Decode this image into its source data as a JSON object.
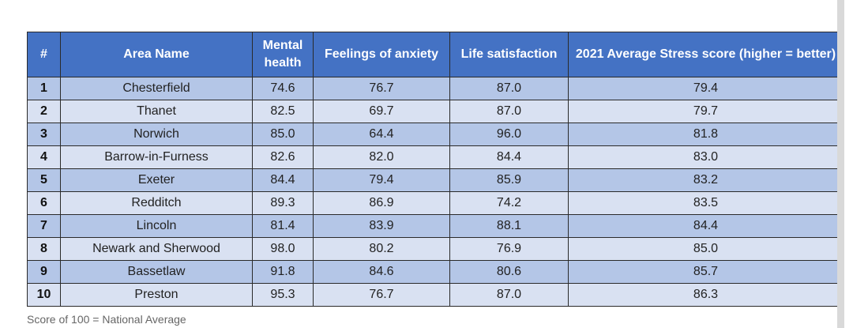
{
  "table": {
    "headers": [
      "#",
      "Area Name",
      "Mental health",
      "Feelings of anxiety",
      "Life satisfaction",
      "2021 Average Stress score (higher = better)"
    ],
    "rows": [
      [
        "1",
        "Chesterfield",
        "74.6",
        "76.7",
        "87.0",
        "79.4"
      ],
      [
        "2",
        "Thanet",
        "82.5",
        "69.7",
        "87.0",
        "79.7"
      ],
      [
        "3",
        "Norwich",
        "85.0",
        "64.4",
        "96.0",
        "81.8"
      ],
      [
        "4",
        "Barrow-in-Furness",
        "82.6",
        "82.0",
        "84.4",
        "83.0"
      ],
      [
        "5",
        "Exeter",
        "84.4",
        "79.4",
        "85.9",
        "83.2"
      ],
      [
        "6",
        "Redditch",
        "89.3",
        "86.9",
        "74.2",
        "83.5"
      ],
      [
        "7",
        "Lincoln",
        "81.4",
        "83.9",
        "88.1",
        "84.4"
      ],
      [
        "8",
        "Newark and Sherwood",
        "98.0",
        "80.2",
        "76.9",
        "85.0"
      ],
      [
        "9",
        "Bassetlaw",
        "91.8",
        "84.6",
        "80.6",
        "85.7"
      ],
      [
        "10",
        "Preston",
        "95.3",
        "76.7",
        "87.0",
        "86.3"
      ]
    ]
  },
  "footnote": "Score of 100 = National Average",
  "colors": {
    "header_bg": "#4472c4",
    "row_odd": "#b4c6e7",
    "row_even": "#d9e1f2"
  }
}
